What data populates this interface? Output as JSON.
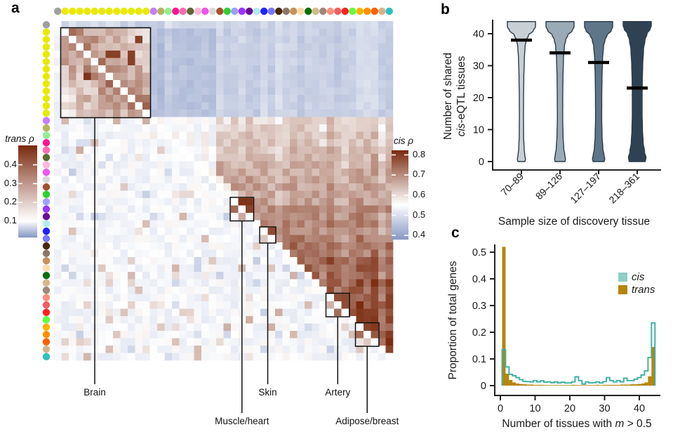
{
  "figure": {
    "background": "#ffffff",
    "panel_labels": {
      "a": "a",
      "b": "b",
      "c": "c"
    }
  },
  "chart_data": [
    {
      "type": "heatmap",
      "panel": "a",
      "n_tissues": 46,
      "matrix_note": "Symmetric tissue-by-tissue matrix of eQTL effect-size correlations. Upper triangle = cis correlations (rho 0.4-0.8, mostly red/brown among non-brain tissues, blue between brain and non-brain). Lower triangle = trans correlations (rho ~0-0.5, mostly near white/pale blue with a red brain-brain block). Diagonal is white.",
      "upper_triangle_scale": "cis",
      "lower_triangle_scale": "trans",
      "cis_colorbar": {
        "title_italic": "cis",
        "title_symbol": "ρ",
        "ticks": [
          "0.8",
          "0.7",
          "0.6",
          "0.5",
          "0.4"
        ],
        "tick_values": [
          0.8,
          0.7,
          0.6,
          0.5,
          0.4
        ],
        "top_value": 0.82,
        "white_value": 0.55,
        "bottom_value": 0.38
      },
      "trans_colorbar": {
        "title_italic": "trans",
        "title_symbol": "ρ",
        "ticks": [
          "0.4",
          "0.3",
          "0.2",
          "0.1"
        ],
        "tick_values": [
          0.4,
          0.3,
          0.2,
          0.1
        ],
        "top_value": 0.5,
        "white_value": 0.1,
        "bottom_value": 0.015
      },
      "colormap": {
        "high": "#7a2a0f",
        "mid": "#ffffff",
        "low": "#8899c5"
      },
      "tissue_dot_colors": [
        "#9f9f9f",
        "#e9e900",
        "#e9e900",
        "#e9e900",
        "#e9e900",
        "#e9e900",
        "#e9e900",
        "#e9e900",
        "#e9e900",
        "#e9e900",
        "#e9e900",
        "#e9e900",
        "#e9e900",
        "#c77cff",
        "#b3b35c",
        "#90ee90",
        "#ff1493",
        "#ff69b4",
        "#5a6b2f",
        "#ffb6da",
        "#ee55ee",
        "#d9d9d9",
        "#a0522d",
        "#2fd02f",
        "#9f9fff",
        "#9933ff",
        "#6a0d99",
        "#aeeef0",
        "#2222ff",
        "#7777ff",
        "#4a2800",
        "#8a7866",
        "#c89058",
        "#ffd9a8",
        "#056e05",
        "#d8b888",
        "#9e8878",
        "#ff8f7f",
        "#f05f5f",
        "#ff1f1f",
        "#5fff3f",
        "#ffb300",
        "#ff9000",
        "#ff5f00",
        "#d2b48c",
        "#2fbfbf"
      ],
      "groups": [
        {
          "label": "Brain",
          "start": 1,
          "end": 12,
          "deep_label": false
        },
        {
          "label": "Muscle/heart",
          "start": 24,
          "end": 26,
          "deep_label": true
        },
        {
          "label": "Skin",
          "start": 28,
          "end": 29,
          "deep_label": false
        },
        {
          "label": "Artery",
          "start": 37,
          "end": 39,
          "deep_label": false
        },
        {
          "label": "Adipose/breast",
          "start": 41,
          "end": 43,
          "deep_label": true
        }
      ],
      "seed": 11
    },
    {
      "type": "violin",
      "panel": "b",
      "xlabel": "Sample size of discovery tissue",
      "ylabel_lines": [
        [
          {
            "t": "Number of shared",
            "i": false
          }
        ],
        [
          {
            "t": "cis",
            "i": true
          },
          {
            "t": "-eQTL tissues",
            "i": false
          }
        ]
      ],
      "yticks": [
        0,
        10,
        20,
        30,
        40
      ],
      "ylim": [
        0,
        44
      ],
      "stroke": "#2c3b47",
      "median_color": "#000000",
      "violins": [
        {
          "category": "70–89",
          "median": 38,
          "fill": "#c9d0d5",
          "width_profile": [
            [
              43.8,
              20
            ],
            [
              42.2,
              20
            ],
            [
              41,
              17
            ],
            [
              39.5,
              10
            ],
            [
              38,
              7
            ],
            [
              36,
              5.2
            ],
            [
              32,
              4.1
            ],
            [
              26,
              3.4
            ],
            [
              20,
              3.0
            ],
            [
              14,
              2.9
            ],
            [
              8,
              3.1
            ],
            [
              4,
              3.8
            ],
            [
              2,
              4.8
            ],
            [
              0.8,
              5.8
            ],
            [
              0,
              5.0
            ]
          ]
        },
        {
          "category": "89–126",
          "median": 34,
          "fill": "#9aabb6",
          "width_profile": [
            [
              43.8,
              20
            ],
            [
              42.2,
              20
            ],
            [
              41,
              17.5
            ],
            [
              39.5,
              11
            ],
            [
              38,
              8
            ],
            [
              36,
              6.2
            ],
            [
              32,
              4.9
            ],
            [
              26,
              4.2
            ],
            [
              20,
              3.9
            ],
            [
              14,
              3.8
            ],
            [
              8,
              4.3
            ],
            [
              4,
              5.4
            ],
            [
              2,
              6.8
            ],
            [
              0.8,
              7.8
            ],
            [
              0,
              7.0
            ]
          ]
        },
        {
          "category": "127–197",
          "median": 31,
          "fill": "#5f7689",
          "width_profile": [
            [
              43.8,
              20
            ],
            [
              42.2,
              20
            ],
            [
              41,
              18
            ],
            [
              39.5,
              12
            ],
            [
              38,
              9
            ],
            [
              36,
              7
            ],
            [
              32,
              5.6
            ],
            [
              26,
              4.8
            ],
            [
              20,
              4.5
            ],
            [
              14,
              4.4
            ],
            [
              8,
              4.9
            ],
            [
              4,
              6.1
            ],
            [
              2,
              7.7
            ],
            [
              0.8,
              8.7
            ],
            [
              0,
              8.0
            ]
          ]
        },
        {
          "category": "218–361",
          "median": 23,
          "fill": "#2e4254",
          "width_profile": [
            [
              43.8,
              20
            ],
            [
              42.5,
              20
            ],
            [
              41.5,
              18.5
            ],
            [
              40,
              14
            ],
            [
              38,
              11
            ],
            [
              35,
              9
            ],
            [
              30,
              7.8
            ],
            [
              25,
              7.2
            ],
            [
              20,
              7.0
            ],
            [
              15,
              7.0
            ],
            [
              10,
              7.5
            ],
            [
              6,
              8.5
            ],
            [
              3,
              10.5
            ],
            [
              1.2,
              12.5
            ],
            [
              0,
              11.5
            ]
          ]
        }
      ]
    },
    {
      "type": "step-histogram",
      "panel": "c",
      "ylabel": "Proportion of total genes",
      "xlabel_parts": [
        {
          "t": "Number of tissues with ",
          "i": false
        },
        {
          "t": "m",
          "i": true
        },
        {
          "t": " > 0.5",
          "i": false
        }
      ],
      "xticks": [
        0,
        10,
        20,
        30,
        40
      ],
      "ytick_labels": [
        "0",
        "0.1",
        "0.2",
        "0.3",
        "0.4",
        "0.5"
      ],
      "ytick_values": [
        0,
        0.1,
        0.2,
        0.3,
        0.4,
        0.5
      ],
      "xlim": [
        0,
        45
      ],
      "bin_start": 1,
      "legend": [
        {
          "label": "cis",
          "swatch": "#8ed0c6"
        },
        {
          "label": "trans",
          "swatch": "#b5850b"
        }
      ],
      "cis_line_color": "#3aafa0",
      "trans_fill_color": "#b5850b",
      "cis_values": [
        0.135,
        0.07,
        0.042,
        0.037,
        0.03,
        0.022,
        0.016,
        0.015,
        0.014,
        0.019,
        0.014,
        0.018,
        0.013,
        0.014,
        0.011,
        0.014,
        0.01,
        0.013,
        0.01,
        0.01,
        0.014,
        0.033,
        0.019,
        0.006,
        0.014,
        0.01,
        0.011,
        0.014,
        0.01,
        0.015,
        0.03,
        0.019,
        0.014,
        0.019,
        0.014,
        0.028,
        0.019,
        0.019,
        0.024,
        0.03,
        0.04,
        0.055,
        0.105,
        0.235
      ],
      "trans_values": [
        0.52,
        0.045,
        0.021,
        0.012,
        0.008,
        0.006,
        0.005,
        0.004,
        0.004,
        0.003,
        0.003,
        0.003,
        0.002,
        0.002,
        0.002,
        0.002,
        0.002,
        0.002,
        0.002,
        0.002,
        0.003,
        0.002,
        0.002,
        0.002,
        0.002,
        0.002,
        0.002,
        0.003,
        0.002,
        0.003,
        0.003,
        0.003,
        0.003,
        0.003,
        0.004,
        0.004,
        0.004,
        0.005,
        0.005,
        0.006,
        0.008,
        0.012,
        0.035,
        0.145
      ]
    }
  ]
}
